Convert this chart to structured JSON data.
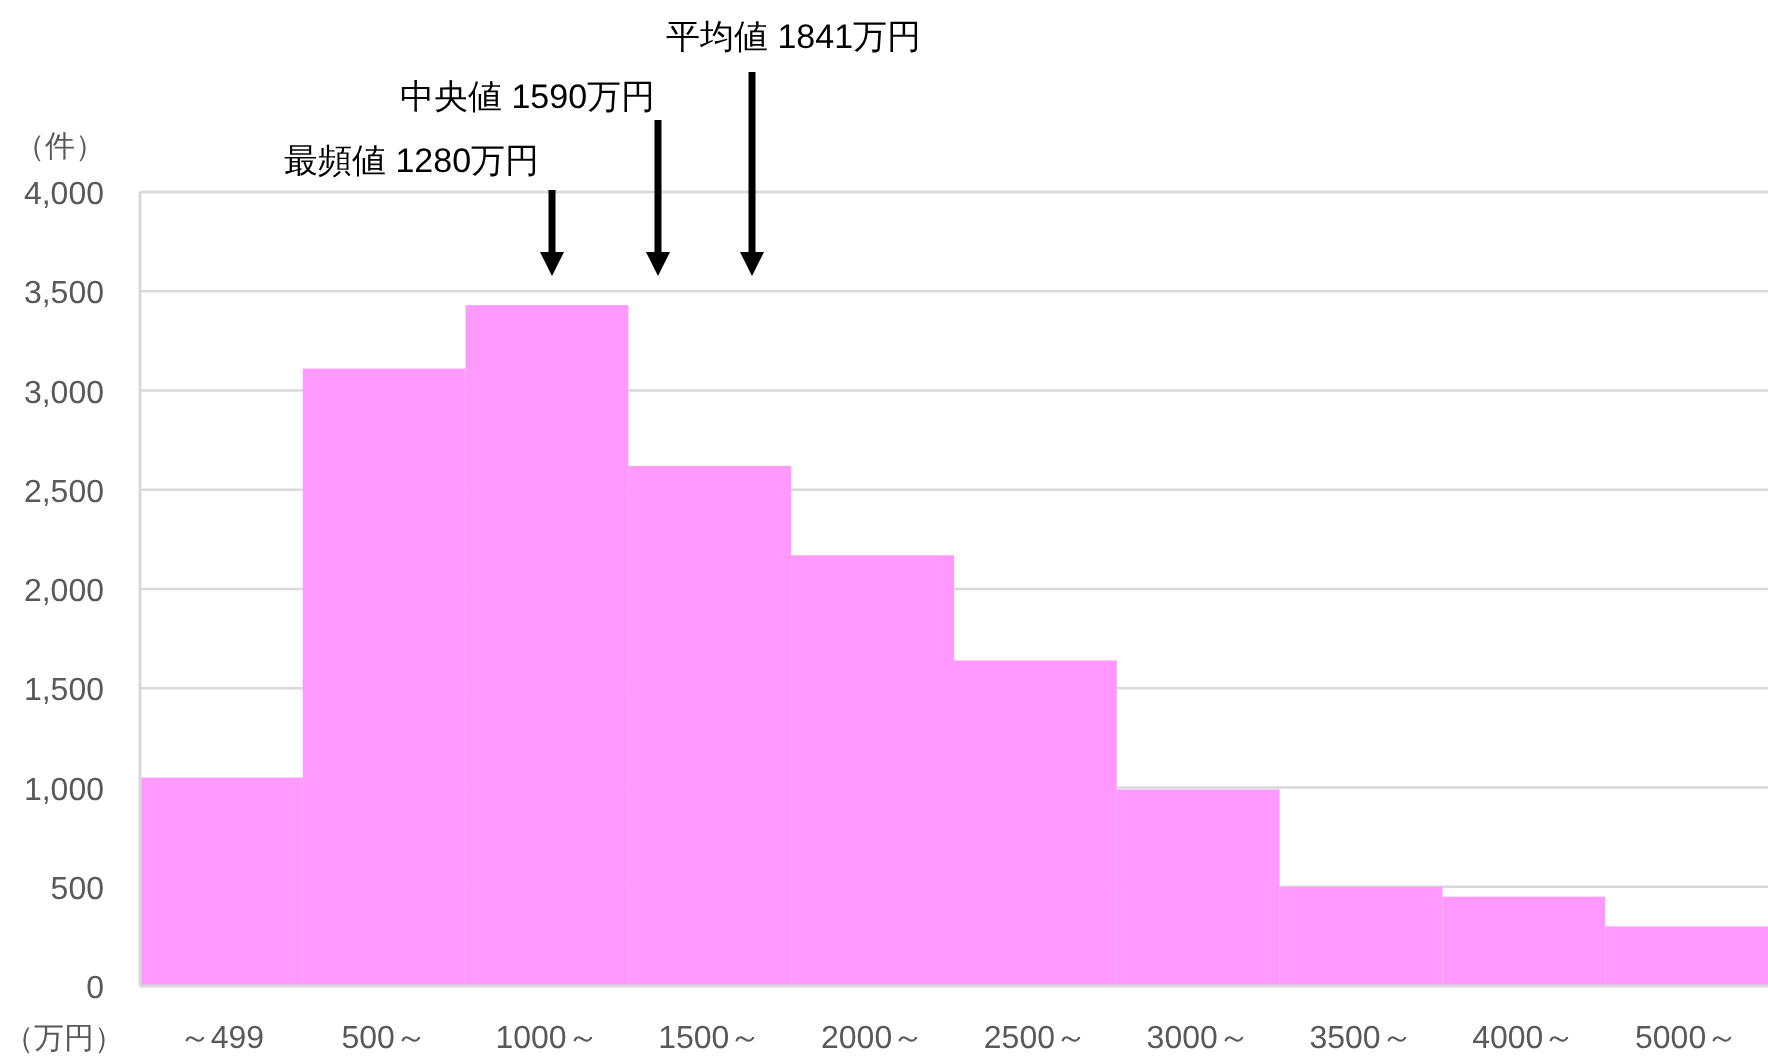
{
  "chart_data": {
    "type": "bar",
    "categories": [
      "～499",
      "500～",
      "1000～",
      "1500～",
      "2000～",
      "2500～",
      "3000～",
      "3500～",
      "4000～",
      "5000～"
    ],
    "values": [
      1050,
      3110,
      3430,
      2620,
      2170,
      1640,
      990,
      500,
      450,
      300
    ],
    "color": "#ff99ff",
    "ylim": [
      0,
      4000
    ],
    "yticks": [
      0,
      500,
      {
        "value": 1000,
        "label": "1,000"
      },
      {
        "value": 1500,
        "label": "1,500"
      },
      {
        "value": 2000,
        "label": "2,000"
      },
      {
        "value": 2500,
        "label": "2,500"
      },
      {
        "value": 3000,
        "label": "3,000"
      },
      {
        "value": 3500,
        "label": "3,500"
      },
      {
        "value": 4000,
        "label": "4,000"
      }
    ],
    "grid": "y",
    "ylabel": "（件）",
    "xlabel": "（万円）",
    "annotations": [
      "最頻値 1280万円",
      "中央値 1590万円",
      "平均値 1841万円"
    ]
  }
}
